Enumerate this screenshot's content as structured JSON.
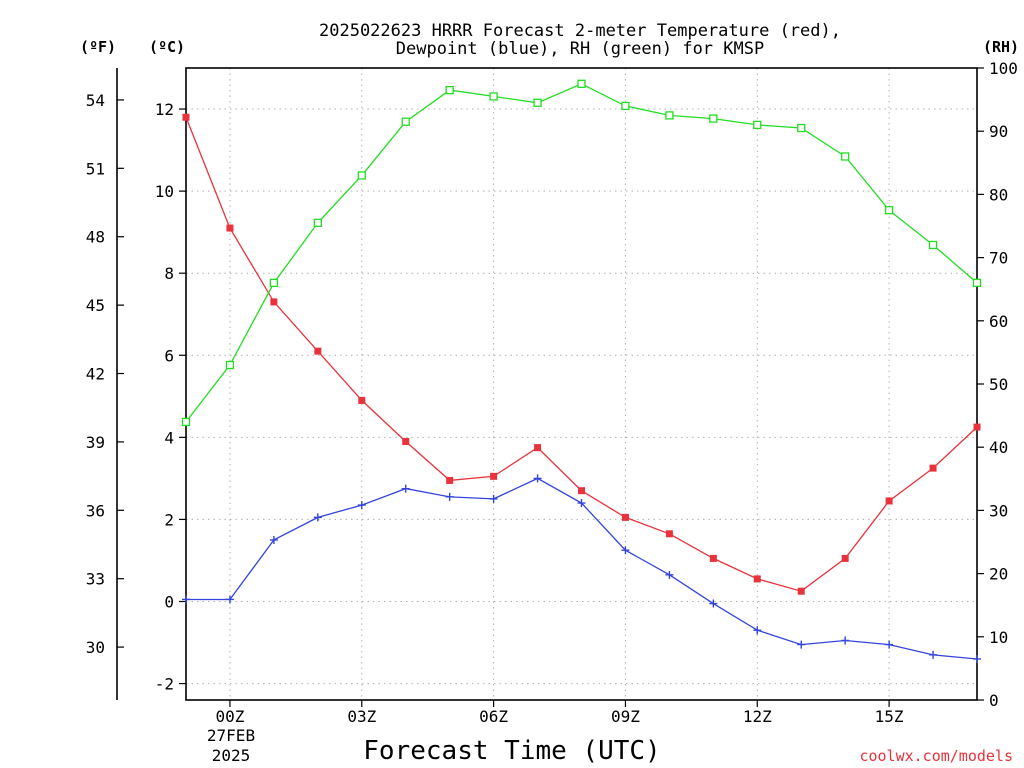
{
  "chart_data": {
    "type": "line",
    "title": [
      "2025022623 HRRR Forecast 2-meter Temperature (red),",
      "Dewpoint (blue), RH (green) for KMSP"
    ],
    "xlabel": "Forecast Time (UTC)",
    "x_tick_labels": [
      "00Z",
      "03Z",
      "06Z",
      "09Z",
      "12Z",
      "15Z"
    ],
    "x_date_label": [
      "27FEB",
      "2025"
    ],
    "x": [
      "2025-02-26T23Z",
      "2025-02-27T00Z",
      "2025-02-27T01Z",
      "2025-02-27T02Z",
      "2025-02-27T03Z",
      "2025-02-27T04Z",
      "2025-02-27T05Z",
      "2025-02-27T06Z",
      "2025-02-27T07Z",
      "2025-02-27T08Z",
      "2025-02-27T09Z",
      "2025-02-27T10Z",
      "2025-02-27T11Z",
      "2025-02-27T12Z",
      "2025-02-27T13Z",
      "2025-02-27T14Z",
      "2025-02-27T15Z",
      "2025-02-27T16Z",
      "2025-02-27T17Z"
    ],
    "x_tick_positions": [
      1,
      4,
      7,
      10,
      13,
      16
    ],
    "axes": {
      "celsius": {
        "label": "(ºC)",
        "range": [
          -2.4,
          13.0
        ],
        "ticks": [
          -2,
          0,
          2,
          4,
          6,
          8,
          10,
          12
        ]
      },
      "fahrenheit": {
        "label": "(ºF)",
        "range": [
          27.68,
          55.4
        ],
        "ticks": [
          30,
          33,
          36,
          39,
          42,
          45,
          48,
          51,
          54
        ]
      },
      "rh": {
        "label": "(RH)",
        "range": [
          0,
          100
        ],
        "ticks": [
          0,
          10,
          20,
          30,
          40,
          50,
          60,
          70,
          80,
          90,
          100
        ]
      }
    },
    "grid": true,
    "series": [
      {
        "name": "Temperature",
        "axis": "celsius",
        "color": "#e8323c",
        "marker": "filled-square",
        "values": [
          11.8,
          9.1,
          7.3,
          6.1,
          4.9,
          3.9,
          2.95,
          3.05,
          3.75,
          2.7,
          2.05,
          1.65,
          1.05,
          0.55,
          0.25,
          1.05,
          2.45,
          3.25,
          4.25
        ]
      },
      {
        "name": "Dewpoint",
        "axis": "celsius",
        "color": "#3344dd",
        "marker": "plus",
        "values": [
          0.05,
          0.05,
          1.5,
          2.05,
          2.35,
          2.75,
          2.55,
          2.5,
          3.0,
          2.4,
          1.25,
          0.65,
          -0.05,
          -0.7,
          -1.05,
          -0.95,
          -1.05,
          -1.3,
          -1.4
        ]
      },
      {
        "name": "RH",
        "axis": "rh",
        "color": "#22dd22",
        "marker": "open-square",
        "values": [
          44,
          53,
          66,
          75.5,
          83,
          91.5,
          96.5,
          95.5,
          94.5,
          97.5,
          94,
          92.5,
          92,
          91,
          90.5,
          86,
          77.5,
          72,
          66
        ]
      }
    ]
  },
  "credit": "coolwx.com/models"
}
